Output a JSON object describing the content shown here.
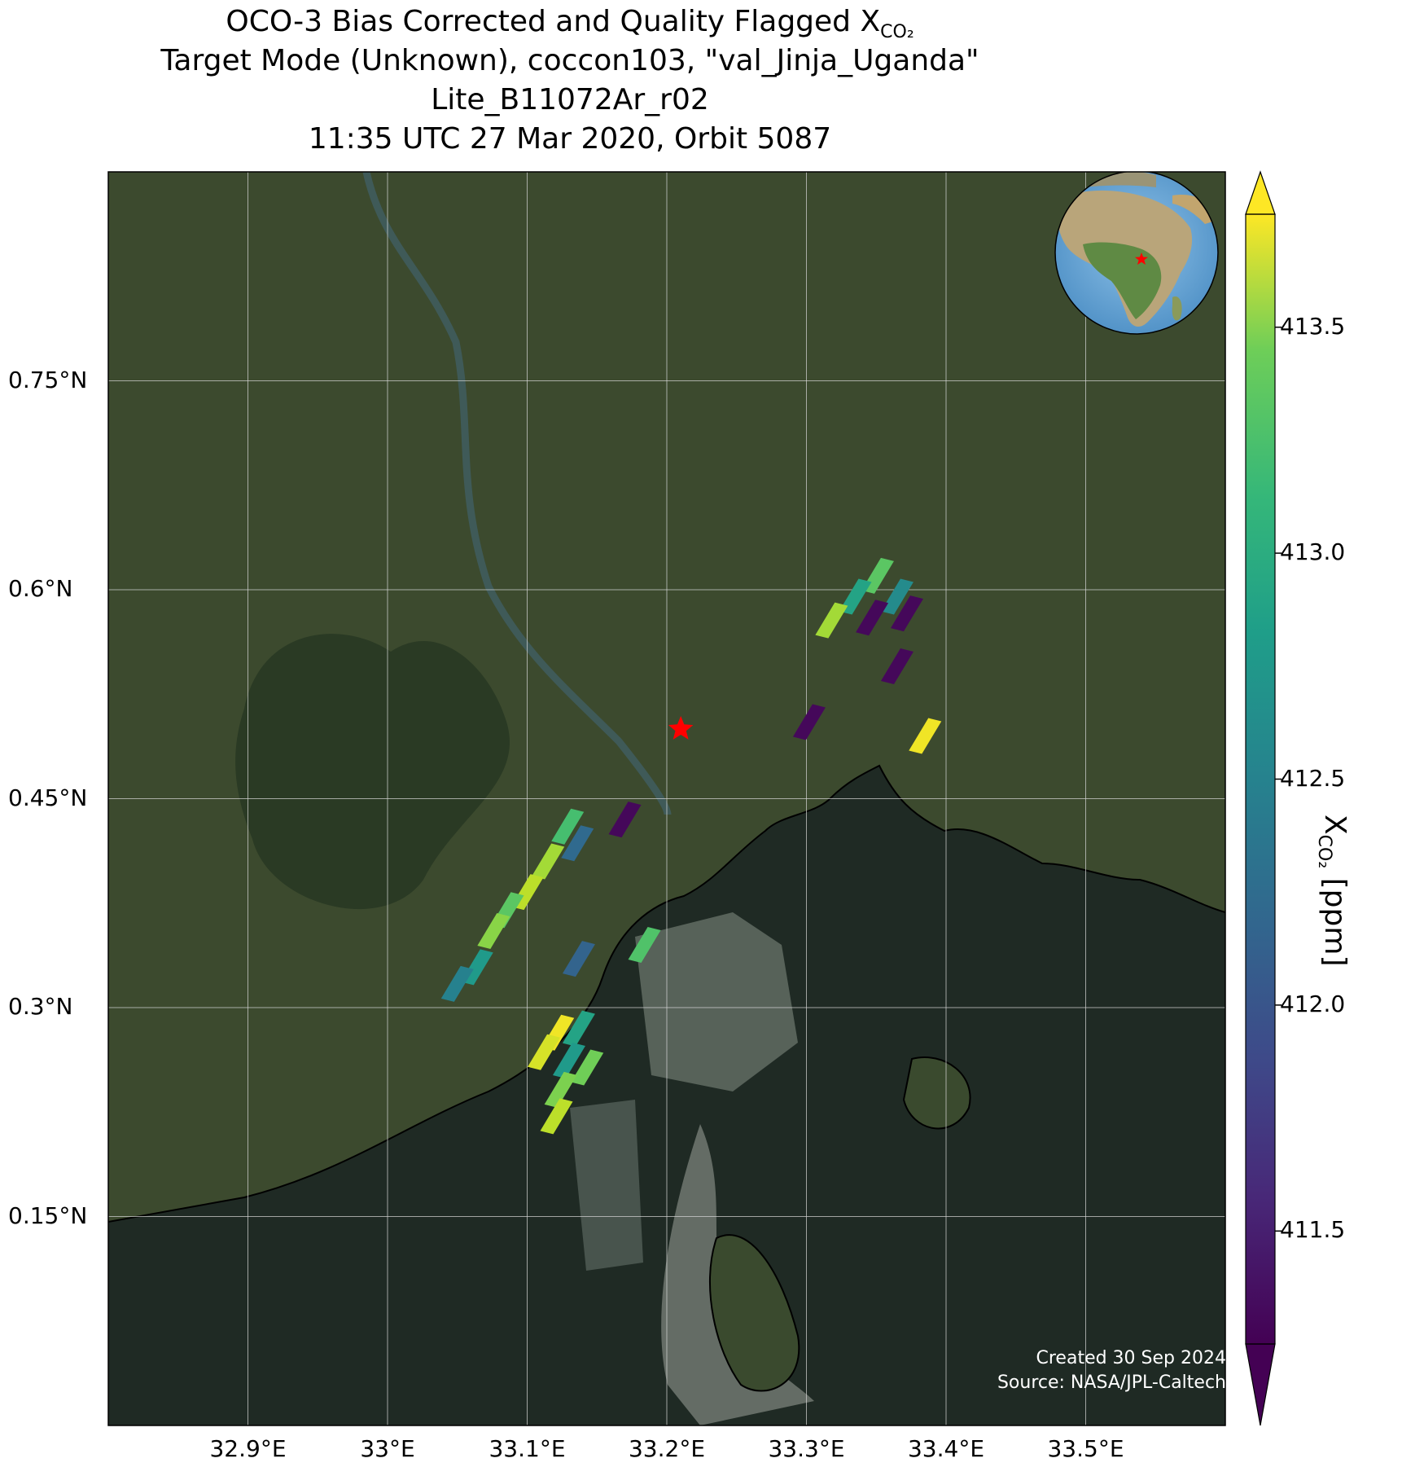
{
  "title": {
    "line1_main": "OCO-3 Bias Corrected and Quality Flagged X",
    "line1_sub": "CO₂",
    "line2": "Target Mode (Unknown), coccon103, \"val_Jinja_Uganda\"",
    "line3": "Lite_B11072Ar_r02",
    "line4": "11:35 UTC 27 Mar 2020, Orbit 5087"
  },
  "map": {
    "lat_ticks": [
      "0.75°N",
      "0.6°N",
      "0.45°N",
      "0.3°N",
      "0.15°N"
    ],
    "lon_ticks": [
      "32.9°E",
      "33°E",
      "33.1°E",
      "33.2°E",
      "33.3°E",
      "33.4°E",
      "33.5°E"
    ],
    "lat_tick_values": [
      0.75,
      0.6,
      0.45,
      0.3,
      0.15
    ],
    "lon_tick_values": [
      32.9,
      33.0,
      33.1,
      33.2,
      33.3,
      33.4,
      33.5
    ],
    "extent": {
      "lon_min": 32.8,
      "lon_max": 33.6,
      "lat_min": 0.0,
      "lat_max": 0.9
    },
    "target_site": {
      "lon": 33.21,
      "lat": 0.5,
      "marker": "red-star"
    },
    "inset_globe": {
      "marker": "red-star",
      "content": "globe centered on Africa"
    }
  },
  "colorbar": {
    "label_main": "X",
    "label_sub": "CO₂",
    "label_unit": "[ppm]",
    "ticks": [
      "413.5",
      "413.0",
      "412.5",
      "412.0",
      "411.5"
    ],
    "tick_values": [
      413.5,
      413.0,
      412.5,
      412.0,
      411.5
    ],
    "vmin": 411.25,
    "vmax": 413.75,
    "extend": "both",
    "colormap": "viridis"
  },
  "credit": {
    "created": "Created 30 Sep 2024",
    "source": "Source: NASA/JPL-Caltech"
  },
  "colors": {
    "land": "#3c4a2e",
    "water": "#1f2a24",
    "grid": "#d8d8d8",
    "coastline": "#000000",
    "target_marker": "#ff0000"
  },
  "soundings": [
    {
      "lon": 33.351,
      "lat": 0.61,
      "xco2": 413.1
    },
    {
      "lon": 33.335,
      "lat": 0.595,
      "xco2": 412.7
    },
    {
      "lon": 33.365,
      "lat": 0.595,
      "xco2": 412.45
    },
    {
      "lon": 33.318,
      "lat": 0.578,
      "xco2": 413.4
    },
    {
      "lon": 33.347,
      "lat": 0.58,
      "xco2": 411.3
    },
    {
      "lon": 33.372,
      "lat": 0.583,
      "xco2": 411.3
    },
    {
      "lon": 33.365,
      "lat": 0.545,
      "xco2": 411.3
    },
    {
      "lon": 33.302,
      "lat": 0.505,
      "xco2": 411.3
    },
    {
      "lon": 33.385,
      "lat": 0.495,
      "xco2": 413.7
    },
    {
      "lon": 33.17,
      "lat": 0.435,
      "xco2": 411.3
    },
    {
      "lon": 33.129,
      "lat": 0.43,
      "xco2": 413.0
    },
    {
      "lon": 33.136,
      "lat": 0.418,
      "xco2": 412.1
    },
    {
      "lon": 33.115,
      "lat": 0.405,
      "xco2": 413.4
    },
    {
      "lon": 33.1,
      "lat": 0.383,
      "xco2": 413.5
    },
    {
      "lon": 33.086,
      "lat": 0.37,
      "xco2": 413.1
    },
    {
      "lon": 33.076,
      "lat": 0.355,
      "xco2": 413.3
    },
    {
      "lon": 33.184,
      "lat": 0.345,
      "xco2": 413.05
    },
    {
      "lon": 33.137,
      "lat": 0.335,
      "xco2": 412.05
    },
    {
      "lon": 33.064,
      "lat": 0.329,
      "xco2": 412.6
    },
    {
      "lon": 33.05,
      "lat": 0.317,
      "xco2": 412.35
    },
    {
      "lon": 33.122,
      "lat": 0.282,
      "xco2": 413.7
    },
    {
      "lon": 33.137,
      "lat": 0.285,
      "xco2": 412.7
    },
    {
      "lon": 33.112,
      "lat": 0.268,
      "xco2": 413.6
    },
    {
      "lon": 33.13,
      "lat": 0.262,
      "xco2": 412.6
    },
    {
      "lon": 33.143,
      "lat": 0.257,
      "xco2": 413.2
    },
    {
      "lon": 33.124,
      "lat": 0.241,
      "xco2": 413.25
    },
    {
      "lon": 33.121,
      "lat": 0.222,
      "xco2": 413.5
    }
  ]
}
